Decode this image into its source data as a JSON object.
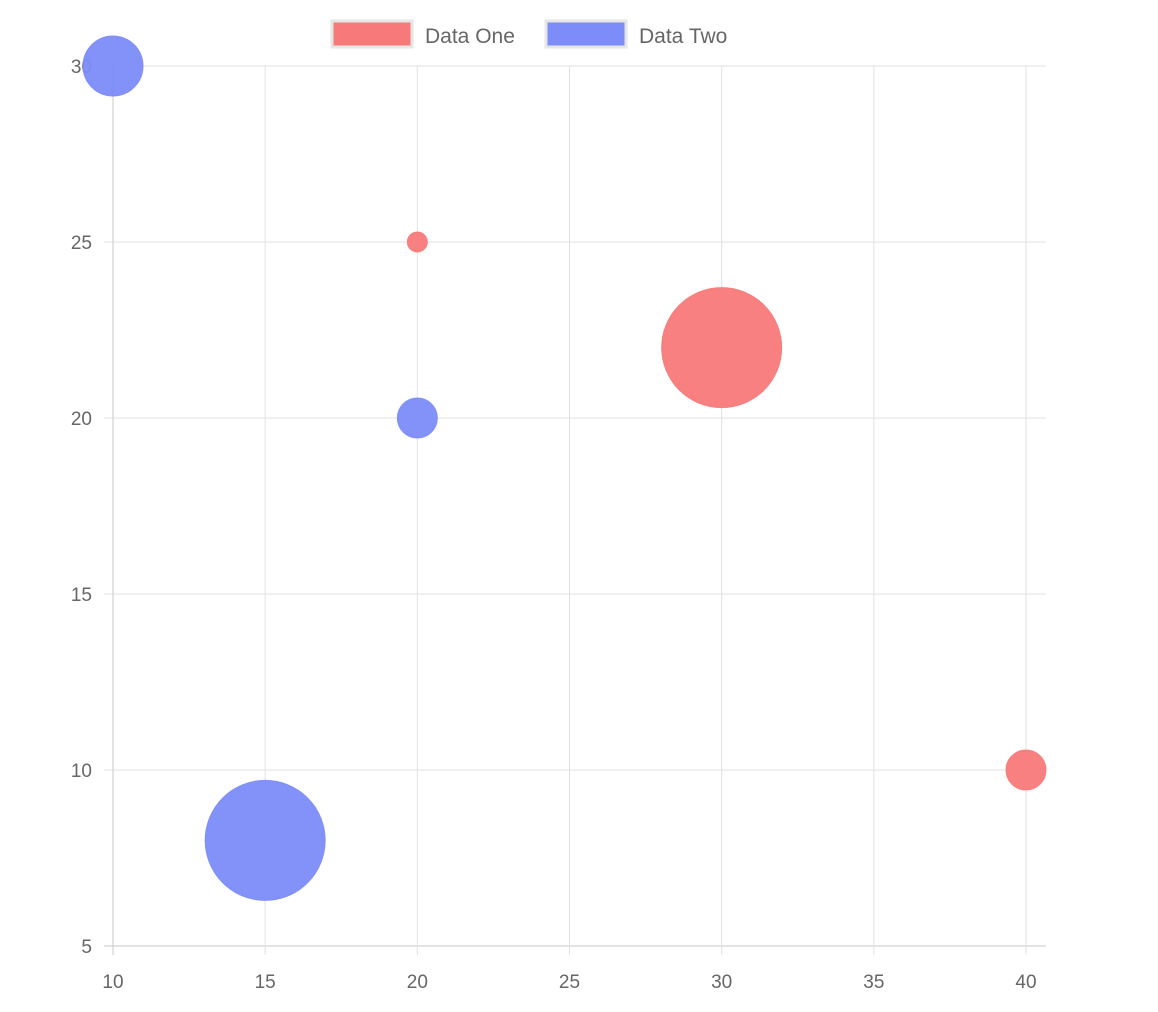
{
  "chart_data": {
    "type": "bubble",
    "title": "",
    "xlabel": "",
    "ylabel": "",
    "xlim": [
      10,
      40
    ],
    "ylim": [
      5,
      30
    ],
    "x_ticks": [
      "10",
      "15",
      "20",
      "25",
      "30",
      "35",
      "40"
    ],
    "y_ticks": [
      "5",
      "10",
      "15",
      "20",
      "25",
      "30"
    ],
    "grid": true,
    "legend_position": "top",
    "series": [
      {
        "name": "Data One",
        "color": "#f87979",
        "points": [
          {
            "x": 20,
            "y": 25,
            "r": 10
          },
          {
            "x": 30,
            "y": 22,
            "r": 60
          },
          {
            "x": 40,
            "y": 10,
            "r": 20
          }
        ]
      },
      {
        "name": "Data Two",
        "color": "#7c8cf8",
        "points": [
          {
            "x": 10,
            "y": 30,
            "r": 30
          },
          {
            "x": 20,
            "y": 20,
            "r": 20
          },
          {
            "x": 15,
            "y": 8,
            "r": 60
          }
        ]
      }
    ]
  }
}
